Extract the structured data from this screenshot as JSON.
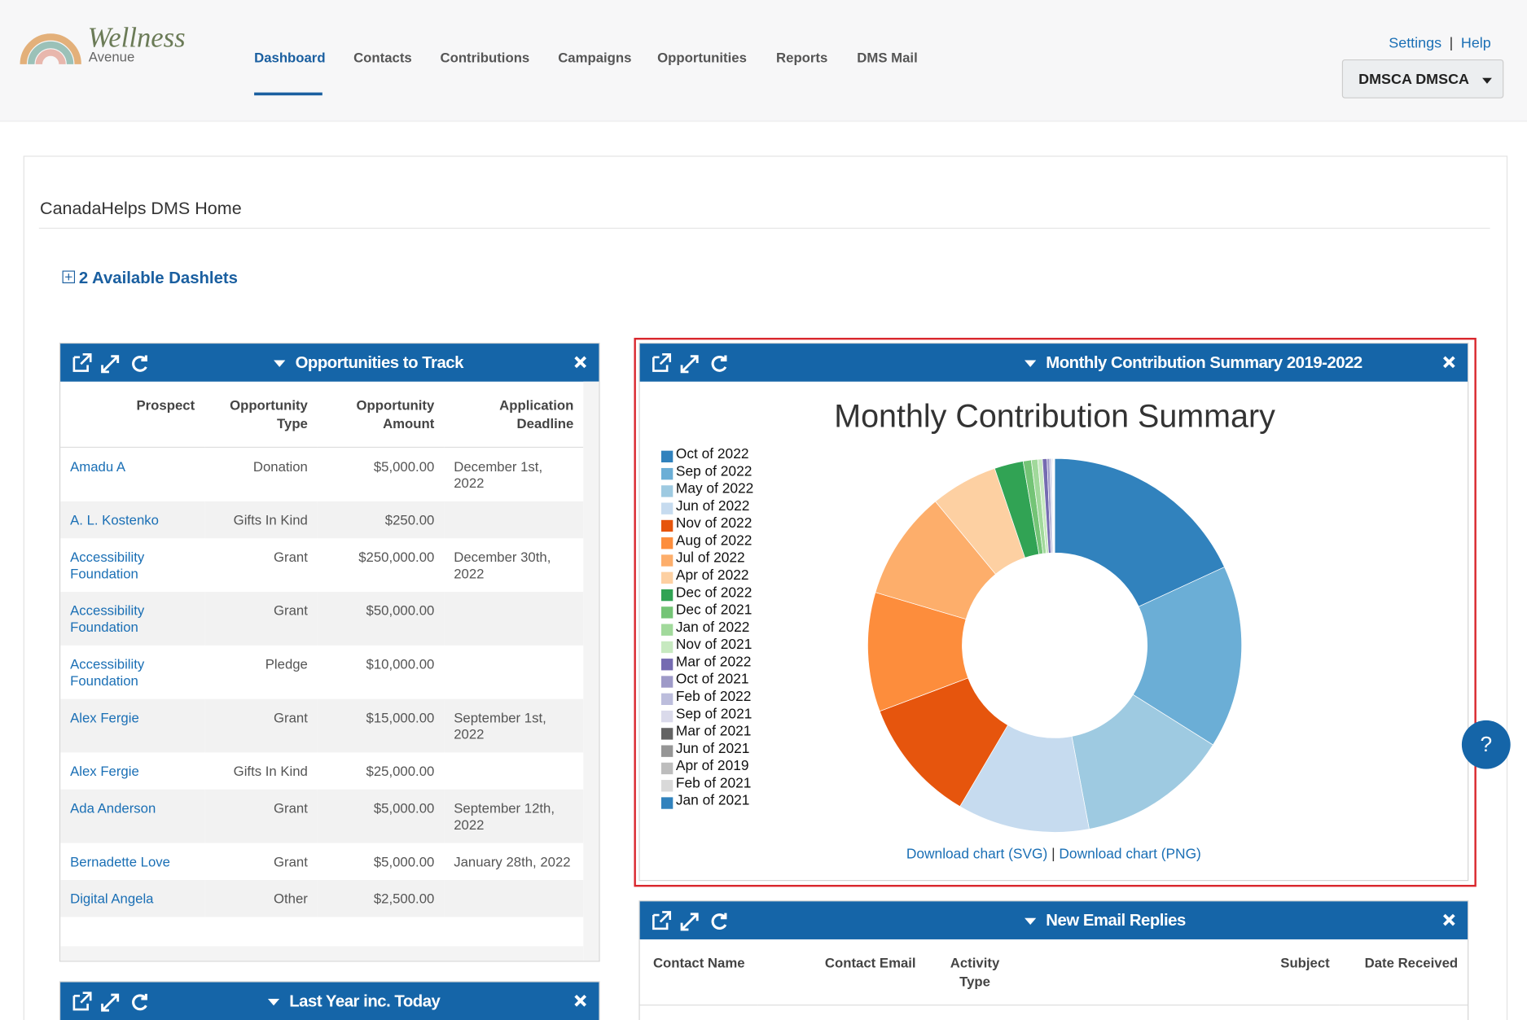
{
  "brand": {
    "name": "Wellness",
    "sub": "Avenue"
  },
  "nav": [
    "Dashboard",
    "Contacts",
    "Contributions",
    "Campaigns",
    "Opportunities",
    "Reports",
    "DMS Mail"
  ],
  "top_links": [
    "Settings",
    "|",
    "Help"
  ],
  "user": "DMSCA DMSCA",
  "page_title": "CanadaHelps DMS Home",
  "available_dashlets": "2 Available Dashlets",
  "opportunities": {
    "title": "Opportunities to Track",
    "columns": [
      "Prospect",
      "Opportunity Type",
      "Opportunity Amount",
      "Application Deadline"
    ],
    "rows": [
      [
        "Amadu A",
        "Donation",
        "$5,000.00",
        "December 1st, 2022"
      ],
      [
        "A. L. Kostenko",
        "Gifts In Kind",
        "$250.00",
        ""
      ],
      [
        "Accessibility Foundation",
        "Grant",
        "$250,000.00",
        "December 30th, 2022"
      ],
      [
        "Accessibility Foundation",
        "Grant",
        "$50,000.00",
        ""
      ],
      [
        "Accessibility Foundation",
        "Pledge",
        "$10,000.00",
        ""
      ],
      [
        "Alex Fergie",
        "Grant",
        "$15,000.00",
        "September 1st, 2022"
      ],
      [
        "Alex Fergie",
        "Gifts In Kind",
        "$25,000.00",
        ""
      ],
      [
        "Ada Anderson",
        "Grant",
        "$5,000.00",
        "September 12th, 2022"
      ],
      [
        "Bernadette Love",
        "Grant",
        "$5,000.00",
        "January 28th, 2022"
      ],
      [
        "Digital Angela",
        "Other",
        "$2,500.00",
        ""
      ]
    ]
  },
  "monthly": {
    "title": "Monthly Contribution Summary 2019-2022",
    "chart": {
      "type": "pie",
      "title": "Monthly Contribution Summary",
      "categories": [
        "Oct of 2022",
        "Sep of 2022",
        "May of 2022",
        "Jun of 2022",
        "Nov of 2022",
        "Aug of 2022",
        "Jul of 2022",
        "Apr of 2022",
        "Dec of 2022",
        "Dec of 2021",
        "Jan of 2022",
        "Nov of 2021",
        "Mar of 2022",
        "Oct of 2021",
        "Feb of 2022",
        "Sep of 2021",
        "Mar of 2021",
        "Jun of 2021",
        "Apr of 2019",
        "Feb of 2021",
        "Jan of 2021"
      ],
      "values": [
        18.1,
        15.8,
        13.1,
        11.4,
        10.8,
        10.3,
        9.4,
        5.8,
        2.5,
        0.7,
        0.55,
        0.4,
        0.4,
        0.22,
        0.14,
        0.08,
        0.06,
        0.05,
        0.04,
        0.03,
        0.03
      ],
      "colors": [
        "#3182bd",
        "#6baed6",
        "#9ecae1",
        "#c6dbef",
        "#e6550d",
        "#fd8d3c",
        "#fdae6b",
        "#fdd0a2",
        "#31a354",
        "#74c476",
        "#a1d99b",
        "#c7e9c0",
        "#756bb1",
        "#9e9ac8",
        "#bcbddc",
        "#dadaeb",
        "#636363",
        "#969696",
        "#bdbdbd",
        "#d9d9d9",
        "#3182bd"
      ]
    },
    "links": [
      "Download chart (SVG)",
      "|",
      "Download chart (PNG)"
    ]
  },
  "email": {
    "title": "New Email Replies",
    "columns": [
      "Contact Name",
      "Contact Email",
      "Activity Type",
      "Subject",
      "Date Received"
    ]
  },
  "last_year": {
    "title": "Last Year inc. Today"
  },
  "help": "?"
}
